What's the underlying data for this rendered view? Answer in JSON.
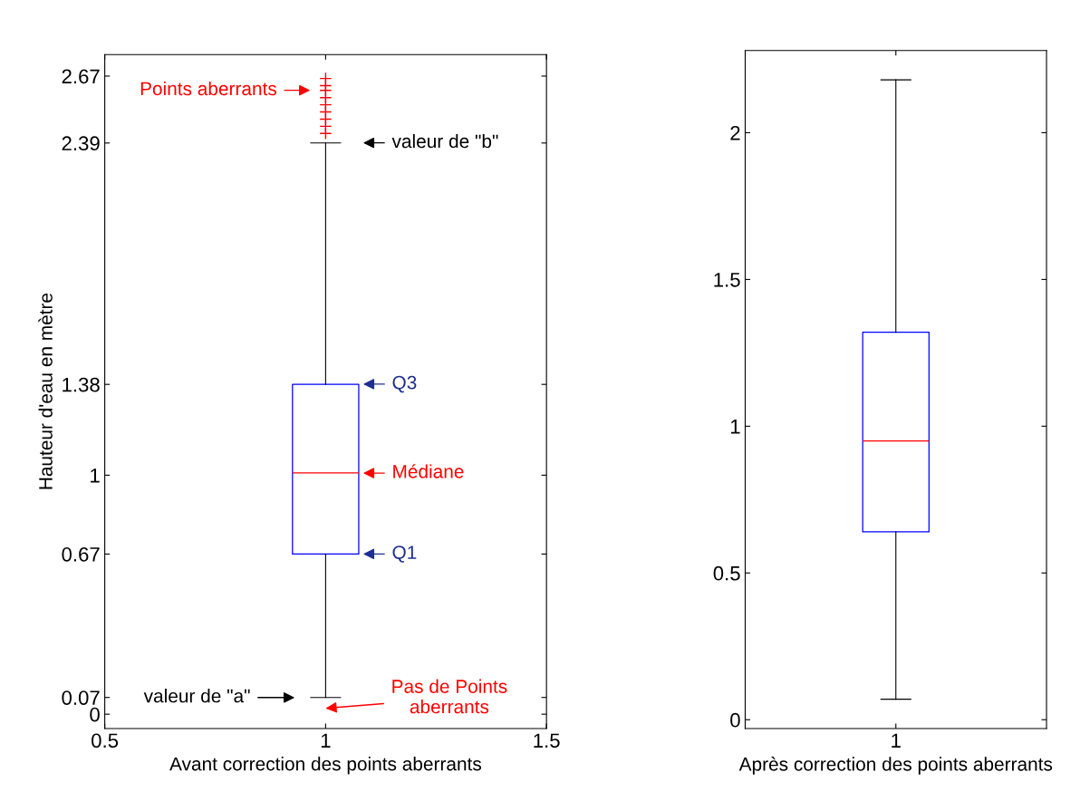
{
  "chart_data": [
    {
      "type": "box",
      "xlabel": "Avant correction des points aberrants",
      "ylabel": "Hauteur d'eau en mètre",
      "x": [
        1
      ],
      "xlim": [
        0.5,
        1.5
      ],
      "xticks": [
        0.5,
        1,
        1.5
      ],
      "ylim": [
        -0.06,
        2.76
      ],
      "yticks": [
        0,
        0.07,
        0.67,
        1,
        1.38,
        2.39,
        2.67
      ],
      "boxes": [
        {
          "low": 0.07,
          "q1": 0.67,
          "median": 1.01,
          "q3": 1.38,
          "high": 2.39,
          "outliers": [
            2.43,
            2.46,
            2.49,
            2.52,
            2.55,
            2.58,
            2.61,
            2.63,
            2.66
          ]
        }
      ],
      "annotations": [
        "Points aberrants",
        "valeur de \"b\"",
        "Q3",
        "Médiane",
        "Q1",
        "valeur de \"a\"",
        "Pas de Points\naberrants"
      ]
    },
    {
      "type": "box",
      "xlabel": "Après correction des points aberrants",
      "categories": [
        "1"
      ],
      "ylim": [
        -0.03,
        2.28
      ],
      "yticks": [
        0,
        0.5,
        1,
        1.5,
        2
      ],
      "boxes": [
        {
          "low": 0.07,
          "q1": 0.64,
          "median": 0.95,
          "q3": 1.32,
          "high": 2.18
        }
      ]
    }
  ]
}
